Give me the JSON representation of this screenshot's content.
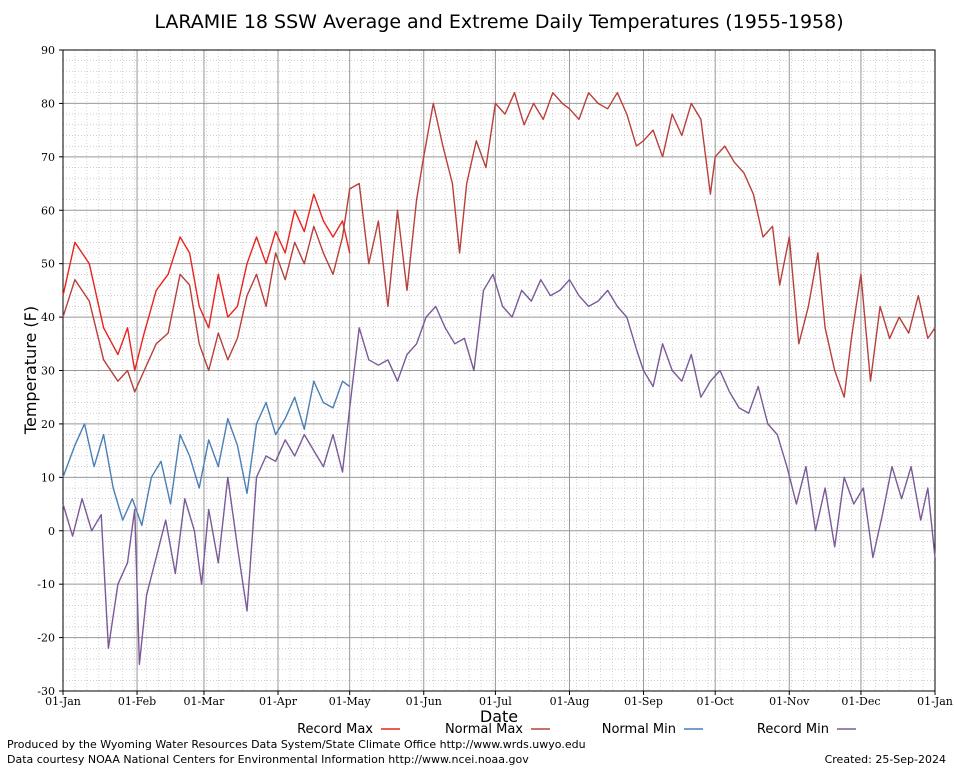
{
  "chart_data": {
    "type": "line",
    "title": "LARAMIE 18 SSW Average and Extreme Daily Temperatures (1955-1958)",
    "xlabel": "Date",
    "ylabel": "Temperature (F)",
    "ylim": [
      -30,
      90
    ],
    "y_ticks": [
      -30,
      -20,
      -10,
      0,
      10,
      20,
      30,
      40,
      50,
      60,
      70,
      80,
      90
    ],
    "x_ticks": [
      {
        "label": "01-Jan",
        "day": 1
      },
      {
        "label": "01-Feb",
        "day": 32
      },
      {
        "label": "01-Mar",
        "day": 60
      },
      {
        "label": "01-Apr",
        "day": 91
      },
      {
        "label": "01-May",
        "day": 121
      },
      {
        "label": "01-Jun",
        "day": 152
      },
      {
        "label": "01-Jul",
        "day": 182
      },
      {
        "label": "01-Aug",
        "day": 213
      },
      {
        "label": "01-Sep",
        "day": 244
      },
      {
        "label": "01-Oct",
        "day": 274
      },
      {
        "label": "01-Nov",
        "day": 305
      },
      {
        "label": "01-Dec",
        "day": 335
      },
      {
        "label": "01-Jan",
        "day": 366
      }
    ],
    "grid": true,
    "legend_position": "bottom",
    "series": [
      {
        "name": "Record Max",
        "color": "#e8241f",
        "points": [
          [
            1,
            44
          ],
          [
            6,
            54
          ],
          [
            12,
            50
          ],
          [
            18,
            38
          ],
          [
            24,
            33
          ],
          [
            28,
            38
          ],
          [
            31,
            30
          ],
          [
            35,
            37
          ],
          [
            40,
            45
          ],
          [
            45,
            48
          ],
          [
            50,
            55
          ],
          [
            54,
            52
          ],
          [
            58,
            42
          ],
          [
            62,
            38
          ],
          [
            66,
            48
          ],
          [
            70,
            40
          ],
          [
            74,
            42
          ],
          [
            78,
            50
          ],
          [
            82,
            55
          ],
          [
            86,
            50
          ],
          [
            90,
            56
          ],
          [
            94,
            52
          ],
          [
            98,
            60
          ],
          [
            102,
            56
          ],
          [
            106,
            63
          ],
          [
            110,
            58
          ],
          [
            114,
            55
          ],
          [
            118,
            58
          ],
          [
            121,
            52
          ]
        ]
      },
      {
        "name": "Normal Max",
        "color": "#b8403c",
        "points": [
          [
            1,
            40
          ],
          [
            6,
            47
          ],
          [
            12,
            43
          ],
          [
            18,
            32
          ],
          [
            24,
            28
          ],
          [
            28,
            30
          ],
          [
            31,
            26
          ],
          [
            35,
            30
          ],
          [
            40,
            35
          ],
          [
            45,
            37
          ],
          [
            50,
            48
          ],
          [
            54,
            46
          ],
          [
            58,
            35
          ],
          [
            62,
            30
          ],
          [
            66,
            37
          ],
          [
            70,
            32
          ],
          [
            74,
            36
          ],
          [
            78,
            44
          ],
          [
            82,
            48
          ],
          [
            86,
            42
          ],
          [
            90,
            52
          ],
          [
            94,
            47
          ],
          [
            98,
            54
          ],
          [
            102,
            50
          ],
          [
            106,
            57
          ],
          [
            110,
            52
          ],
          [
            114,
            48
          ],
          [
            118,
            55
          ],
          [
            121,
            64
          ],
          [
            125,
            65
          ],
          [
            129,
            50
          ],
          [
            133,
            58
          ],
          [
            137,
            42
          ],
          [
            141,
            60
          ],
          [
            145,
            45
          ],
          [
            149,
            62
          ],
          [
            152,
            70
          ],
          [
            156,
            80
          ],
          [
            160,
            72
          ],
          [
            164,
            65
          ],
          [
            167,
            52
          ],
          [
            170,
            65
          ],
          [
            174,
            73
          ],
          [
            178,
            68
          ],
          [
            182,
            80
          ],
          [
            186,
            78
          ],
          [
            190,
            82
          ],
          [
            194,
            76
          ],
          [
            198,
            80
          ],
          [
            202,
            77
          ],
          [
            206,
            82
          ],
          [
            210,
            80
          ],
          [
            213,
            79
          ],
          [
            217,
            77
          ],
          [
            221,
            82
          ],
          [
            225,
            80
          ],
          [
            229,
            79
          ],
          [
            233,
            82
          ],
          [
            237,
            78
          ],
          [
            241,
            72
          ],
          [
            244,
            73
          ],
          [
            248,
            75
          ],
          [
            252,
            70
          ],
          [
            256,
            78
          ],
          [
            260,
            74
          ],
          [
            264,
            80
          ],
          [
            268,
            77
          ],
          [
            272,
            63
          ],
          [
            274,
            70
          ],
          [
            278,
            72
          ],
          [
            282,
            69
          ],
          [
            286,
            67
          ],
          [
            290,
            63
          ],
          [
            294,
            55
          ],
          [
            298,
            57
          ],
          [
            301,
            46
          ],
          [
            305,
            55
          ],
          [
            309,
            35
          ],
          [
            313,
            42
          ],
          [
            317,
            52
          ],
          [
            320,
            38
          ],
          [
            324,
            30
          ],
          [
            328,
            25
          ],
          [
            331,
            36
          ],
          [
            335,
            48
          ],
          [
            339,
            28
          ],
          [
            343,
            42
          ],
          [
            347,
            36
          ],
          [
            351,
            40
          ],
          [
            355,
            37
          ],
          [
            359,
            44
          ],
          [
            363,
            36
          ],
          [
            366,
            38
          ]
        ]
      },
      {
        "name": "Normal Min",
        "color": "#4a7fb5",
        "points": [
          [
            1,
            10
          ],
          [
            6,
            16
          ],
          [
            10,
            20
          ],
          [
            14,
            12
          ],
          [
            18,
            18
          ],
          [
            22,
            8
          ],
          [
            26,
            2
          ],
          [
            30,
            6
          ],
          [
            34,
            1
          ],
          [
            38,
            10
          ],
          [
            42,
            13
          ],
          [
            46,
            5
          ],
          [
            50,
            18
          ],
          [
            54,
            14
          ],
          [
            58,
            8
          ],
          [
            62,
            17
          ],
          [
            66,
            12
          ],
          [
            70,
            21
          ],
          [
            74,
            16
          ],
          [
            78,
            7
          ],
          [
            82,
            20
          ],
          [
            86,
            24
          ],
          [
            90,
            18
          ],
          [
            94,
            21
          ],
          [
            98,
            25
          ],
          [
            102,
            19
          ],
          [
            106,
            28
          ],
          [
            110,
            24
          ],
          [
            114,
            23
          ],
          [
            118,
            28
          ],
          [
            121,
            27
          ]
        ]
      },
      {
        "name": "Record Min",
        "color": "#7a5a98",
        "points": [
          [
            1,
            5
          ],
          [
            5,
            -1
          ],
          [
            9,
            6
          ],
          [
            13,
            0
          ],
          [
            17,
            3
          ],
          [
            20,
            -22
          ],
          [
            24,
            -10
          ],
          [
            28,
            -6
          ],
          [
            31,
            4
          ],
          [
            33,
            -25
          ],
          [
            36,
            -12
          ],
          [
            40,
            -5
          ],
          [
            44,
            2
          ],
          [
            48,
            -8
          ],
          [
            52,
            6
          ],
          [
            56,
            0
          ],
          [
            59,
            -10
          ],
          [
            62,
            4
          ],
          [
            66,
            -6
          ],
          [
            70,
            10
          ],
          [
            74,
            -3
          ],
          [
            78,
            -15
          ],
          [
            82,
            10
          ],
          [
            86,
            14
          ],
          [
            90,
            13
          ],
          [
            94,
            17
          ],
          [
            98,
            14
          ],
          [
            102,
            18
          ],
          [
            106,
            15
          ],
          [
            110,
            12
          ],
          [
            114,
            18
          ],
          [
            118,
            11
          ],
          [
            121,
            23
          ],
          [
            125,
            38
          ],
          [
            129,
            32
          ],
          [
            133,
            31
          ],
          [
            137,
            32
          ],
          [
            141,
            28
          ],
          [
            145,
            33
          ],
          [
            149,
            35
          ],
          [
            153,
            40
          ],
          [
            157,
            42
          ],
          [
            161,
            38
          ],
          [
            165,
            35
          ],
          [
            169,
            36
          ],
          [
            173,
            30
          ],
          [
            177,
            45
          ],
          [
            181,
            48
          ],
          [
            185,
            42
          ],
          [
            189,
            40
          ],
          [
            193,
            45
          ],
          [
            197,
            43
          ],
          [
            201,
            47
          ],
          [
            205,
            44
          ],
          [
            209,
            45
          ],
          [
            213,
            47
          ],
          [
            217,
            44
          ],
          [
            221,
            42
          ],
          [
            225,
            43
          ],
          [
            229,
            45
          ],
          [
            233,
            42
          ],
          [
            237,
            40
          ],
          [
            241,
            34
          ],
          [
            244,
            30
          ],
          [
            248,
            27
          ],
          [
            252,
            35
          ],
          [
            256,
            30
          ],
          [
            260,
            28
          ],
          [
            264,
            33
          ],
          [
            268,
            25
          ],
          [
            272,
            28
          ],
          [
            276,
            30
          ],
          [
            280,
            26
          ],
          [
            284,
            23
          ],
          [
            288,
            22
          ],
          [
            292,
            27
          ],
          [
            296,
            20
          ],
          [
            300,
            18
          ],
          [
            304,
            12
          ],
          [
            308,
            5
          ],
          [
            312,
            12
          ],
          [
            316,
            0
          ],
          [
            320,
            8
          ],
          [
            324,
            -3
          ],
          [
            328,
            10
          ],
          [
            332,
            5
          ],
          [
            336,
            8
          ],
          [
            340,
            -5
          ],
          [
            344,
            3
          ],
          [
            348,
            12
          ],
          [
            352,
            6
          ],
          [
            356,
            12
          ],
          [
            360,
            2
          ],
          [
            363,
            8
          ],
          [
            366,
            -5
          ]
        ]
      }
    ]
  },
  "footer": {
    "line1": "Produced by the Wyoming Water Resources Data System/State Climate Office http://www.wrds.uwyo.edu",
    "line2": "Data courtesy NOAA National Centers for Environmental Information http://www.ncei.noaa.gov",
    "created": "Created:  25-Sep-2024"
  }
}
